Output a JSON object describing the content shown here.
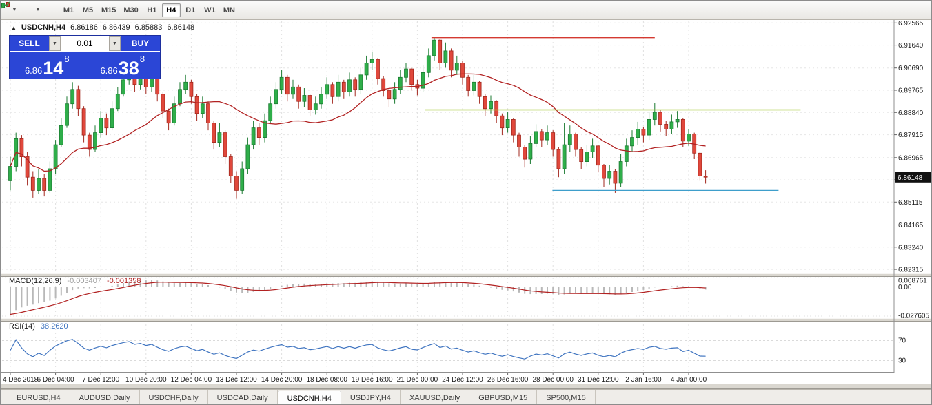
{
  "toolbar": {
    "timeframes": [
      "M1",
      "M5",
      "M15",
      "M30",
      "H1",
      "H4",
      "D1",
      "W1",
      "MN"
    ],
    "active_timeframe": "H4"
  },
  "chart": {
    "symbol_period": "USDCNH,H4",
    "ohlc": [
      "6.86186",
      "6.86439",
      "6.85883",
      "6.86148"
    ],
    "current_price_label": "6.86148",
    "trade_panel": {
      "sell_label": "SELL",
      "buy_label": "BUY",
      "lot_value": "0.01",
      "bid": {
        "prefix": "6.86",
        "pips": "14",
        "point": "8"
      },
      "ask": {
        "prefix": "6.86",
        "pips": "38",
        "point": "8"
      }
    }
  },
  "indicators": {
    "macd": {
      "label": "MACD(12,26,9)",
      "value": "-0.003407",
      "signal": "-0.001358",
      "scale": [
        "0.008761",
        "0.00",
        "-0.027605"
      ]
    },
    "rsi": {
      "label": "RSI(14)",
      "value": "38.2620",
      "scale": [
        "70",
        "30"
      ]
    }
  },
  "tabs": {
    "items": [
      "EURUSD,H4",
      "AUDUSD,Daily",
      "USDCHF,Daily",
      "USDCAD,Daily",
      "USDCNH,H4",
      "USDJPY,H4",
      "XAUUSD,Daily",
      "GBPUSD,M15",
      "SP500,M15"
    ],
    "active": "USDCNH,H4"
  },
  "colors": {
    "bull": "#2fae4a",
    "bull_border": "#1b7a31",
    "bear": "#e0483c",
    "bear_border": "#a2271d",
    "ma": "#b22222",
    "macd_hist": "#b8b8b8",
    "macd_signal": "#b22222",
    "rsi": "#3f74c0",
    "hline_red": "#d43a31",
    "hline_green": "#a6c832",
    "hline_blue": "#3e9ecb",
    "accent_blue": "#2b46d6"
  },
  "chart_data": {
    "type": "candlestick",
    "title": "USDCNH,H4",
    "symbol": "USDCNH",
    "timeframe": "H4",
    "ylim": [
      6.8226,
      6.9263
    ],
    "bars_per_label": 8,
    "price_axis_labels": [
      "6.92565",
      "6.91640",
      "6.90690",
      "6.89765",
      "6.88840",
      "6.87915",
      "6.86965",
      "6.86040",
      "6.85115",
      "6.84165",
      "6.83240",
      "6.82315"
    ],
    "time_axis_labels": [
      "4 Dec 2018",
      "6 Dec 04:00",
      "7 Dec 12:00",
      "10 Dec 20:00",
      "12 Dec 04:00",
      "13 Dec 12:00",
      "14 Dec 20:00",
      "18 Dec 08:00",
      "19 Dec 16:00",
      "21 Dec 00:00",
      "24 Dec 12:00",
      "26 Dec 16:00",
      "28 Dec 00:00",
      "31 Dec 12:00",
      "2 Jan 16:00",
      "4 Jan 00:00"
    ],
    "current_price": 6.86148,
    "candles": [
      [
        6.86,
        6.87,
        6.856,
        6.866
      ],
      [
        6.866,
        6.88,
        6.864,
        6.8775
      ],
      [
        6.8775,
        6.879,
        6.866,
        6.87
      ],
      [
        6.87,
        6.872,
        6.858,
        6.8615
      ],
      [
        6.8615,
        6.864,
        6.853,
        6.856
      ],
      [
        6.856,
        6.865,
        6.8545,
        6.861
      ],
      [
        6.861,
        6.863,
        6.8535,
        6.856
      ],
      [
        6.856,
        6.868,
        6.855,
        6.865
      ],
      [
        6.865,
        6.877,
        6.863,
        6.875
      ],
      [
        6.875,
        6.886,
        6.874,
        6.883
      ],
      [
        6.883,
        6.895,
        6.882,
        6.892
      ],
      [
        6.892,
        6.901,
        6.89,
        6.898
      ],
      [
        6.898,
        6.8995,
        6.887,
        6.89
      ],
      [
        6.89,
        6.891,
        6.876,
        6.879
      ],
      [
        6.879,
        6.88,
        6.87,
        6.873
      ],
      [
        6.873,
        6.883,
        6.872,
        6.88
      ],
      [
        6.88,
        6.889,
        6.878,
        6.886
      ],
      [
        6.886,
        6.888,
        6.879,
        6.882
      ],
      [
        6.882,
        6.893,
        6.881,
        6.89
      ],
      [
        6.89,
        6.899,
        6.889,
        6.896
      ],
      [
        6.896,
        6.905,
        6.895,
        6.902
      ],
      [
        6.902,
        6.9085,
        6.9,
        6.9065
      ],
      [
        6.9065,
        6.907,
        6.897,
        6.9
      ],
      [
        6.9,
        6.907,
        6.898,
        6.904
      ],
      [
        6.904,
        6.905,
        6.896,
        6.899
      ],
      [
        6.899,
        6.906,
        6.897,
        6.903
      ],
      [
        6.903,
        6.904,
        6.893,
        6.896
      ],
      [
        6.896,
        6.897,
        6.886,
        6.889
      ],
      [
        6.889,
        6.89,
        6.881,
        6.884
      ],
      [
        6.884,
        6.895,
        6.883,
        6.892
      ],
      [
        6.892,
        6.901,
        6.891,
        6.898
      ],
      [
        6.898,
        6.904,
        6.896,
        6.901
      ],
      [
        6.901,
        6.902,
        6.892,
        6.895
      ],
      [
        6.895,
        6.896,
        6.885,
        6.888
      ],
      [
        6.888,
        6.895,
        6.886,
        6.892
      ],
      [
        6.892,
        6.893,
        6.881,
        6.884
      ],
      [
        6.884,
        6.885,
        6.873,
        6.876
      ],
      [
        6.876,
        6.884,
        6.874,
        6.88
      ],
      [
        6.88,
        6.881,
        6.867,
        6.87
      ],
      [
        6.87,
        6.871,
        6.859,
        6.862
      ],
      [
        6.862,
        6.864,
        6.8525,
        6.856
      ],
      [
        6.856,
        6.868,
        6.8545,
        6.865
      ],
      [
        6.865,
        6.878,
        6.863,
        6.875
      ],
      [
        6.875,
        6.885,
        6.873,
        6.882
      ],
      [
        6.882,
        6.884,
        6.875,
        6.878
      ],
      [
        6.878,
        6.888,
        6.876,
        6.885
      ],
      [
        6.885,
        6.895,
        6.884,
        6.892
      ],
      [
        6.892,
        6.901,
        6.89,
        6.898
      ],
      [
        6.898,
        6.906,
        6.896,
        6.903
      ],
      [
        6.903,
        6.904,
        6.893,
        6.896
      ],
      [
        6.896,
        6.902,
        6.894,
        6.899
      ],
      [
        6.899,
        6.9,
        6.89,
        6.893
      ],
      [
        6.893,
        6.8985,
        6.8905,
        6.8955
      ],
      [
        6.8955,
        6.896,
        6.887,
        6.8895
      ],
      [
        6.8895,
        6.895,
        6.8875,
        6.892
      ],
      [
        6.892,
        6.899,
        6.89,
        6.896
      ],
      [
        6.896,
        6.903,
        6.894,
        6.9
      ],
      [
        6.9,
        6.901,
        6.892,
        6.895
      ],
      [
        6.895,
        6.904,
        6.893,
        6.901
      ],
      [
        6.901,
        6.902,
        6.894,
        6.897
      ],
      [
        6.897,
        6.905,
        6.895,
        6.902
      ],
      [
        6.902,
        6.903,
        6.895,
        6.898
      ],
      [
        6.898,
        6.907,
        6.896,
        6.904
      ],
      [
        6.904,
        6.912,
        6.902,
        6.909
      ],
      [
        6.909,
        6.9135,
        6.906,
        6.9105
      ],
      [
        6.9105,
        6.911,
        6.9,
        6.9025
      ],
      [
        6.9025,
        6.9035,
        6.895,
        6.8975
      ],
      [
        6.8975,
        6.8985,
        6.8905,
        6.894
      ],
      [
        6.894,
        6.901,
        6.892,
        6.898
      ],
      [
        6.898,
        6.906,
        6.896,
        6.903
      ],
      [
        6.903,
        6.909,
        6.901,
        6.9065
      ],
      [
        6.9065,
        6.907,
        6.8975,
        6.9
      ],
      [
        6.9,
        6.902,
        6.8955,
        6.8985
      ],
      [
        6.8985,
        6.908,
        6.897,
        6.905
      ],
      [
        6.905,
        6.915,
        6.903,
        6.912
      ],
      [
        6.912,
        6.9195,
        6.91,
        6.9185
      ],
      [
        6.9185,
        6.919,
        6.906,
        6.909
      ],
      [
        6.909,
        6.9175,
        6.907,
        6.914
      ],
      [
        6.914,
        6.915,
        6.903,
        6.906
      ],
      [
        6.906,
        6.912,
        6.904,
        6.909
      ],
      [
        6.909,
        6.91,
        6.9,
        6.903
      ],
      [
        6.903,
        6.904,
        6.895,
        6.8975
      ],
      [
        6.8975,
        6.904,
        6.8955,
        6.901
      ],
      [
        6.901,
        6.9015,
        6.892,
        6.895
      ],
      [
        6.895,
        6.896,
        6.887,
        6.89
      ],
      [
        6.89,
        6.8955,
        6.888,
        6.893
      ],
      [
        6.893,
        6.8935,
        6.884,
        6.887
      ],
      [
        6.887,
        6.888,
        6.879,
        6.882
      ],
      [
        6.882,
        6.8885,
        6.88,
        6.8855
      ],
      [
        6.8855,
        6.886,
        6.876,
        6.879
      ],
      [
        6.879,
        6.88,
        6.87,
        6.874
      ],
      [
        6.874,
        6.875,
        6.8655,
        6.869
      ],
      [
        6.869,
        6.8785,
        6.867,
        6.8755
      ],
      [
        6.8755,
        6.8835,
        6.874,
        6.8805
      ],
      [
        6.8805,
        6.8815,
        6.874,
        6.877
      ],
      [
        6.877,
        6.883,
        6.875,
        6.88
      ],
      [
        6.88,
        6.881,
        6.87,
        6.873
      ],
      [
        6.873,
        6.874,
        6.8615,
        6.865
      ],
      [
        6.865,
        6.884,
        6.863,
        6.875
      ],
      [
        6.875,
        6.883,
        6.872,
        6.8795
      ],
      [
        6.8795,
        6.88,
        6.87,
        6.873
      ],
      [
        6.873,
        6.874,
        6.865,
        6.868
      ],
      [
        6.868,
        6.875,
        6.866,
        6.872
      ],
      [
        6.872,
        6.8775,
        6.8695,
        6.8745
      ],
      [
        6.8745,
        6.875,
        6.8635,
        6.8665
      ],
      [
        6.8665,
        6.867,
        6.8575,
        6.861
      ],
      [
        6.861,
        6.8665,
        6.8585,
        6.864
      ],
      [
        6.864,
        6.865,
        6.855,
        6.859
      ],
      [
        6.859,
        6.871,
        6.8575,
        6.868
      ],
      [
        6.868,
        6.8775,
        6.866,
        6.8745
      ],
      [
        6.8745,
        6.881,
        6.872,
        6.878
      ],
      [
        6.878,
        6.8845,
        6.875,
        6.8815
      ],
      [
        6.8815,
        6.8825,
        6.876,
        6.879
      ],
      [
        6.879,
        6.8885,
        6.877,
        6.8855
      ],
      [
        6.8855,
        6.8925,
        6.883,
        6.8885
      ],
      [
        6.8885,
        6.8895,
        6.8805,
        6.8835
      ],
      [
        6.8835,
        6.885,
        6.8785,
        6.8815
      ],
      [
        6.8815,
        6.8875,
        6.8795,
        6.8845
      ],
      [
        6.8845,
        6.889,
        6.882,
        6.8855
      ],
      [
        6.8855,
        6.886,
        6.874,
        6.8765
      ],
      [
        6.8765,
        6.8815,
        6.8745,
        6.8795
      ],
      [
        6.8795,
        6.88,
        6.869,
        6.8715
      ],
      [
        6.8715,
        6.872,
        6.86,
        6.862
      ],
      [
        6.86186,
        6.86439,
        6.85883,
        6.86148
      ]
    ],
    "ma": {
      "period": 22
    },
    "hlines": [
      {
        "name": "resistance-hline-red",
        "price": 6.9195,
        "from_bar": 74.5,
        "to_bar": 114,
        "color_key": "hline_red"
      },
      {
        "name": "resistance-hline-green",
        "price": 6.8895,
        "from_bar": 73.3,
        "to_bar": 139.8,
        "color_key": "hline_green"
      },
      {
        "name": "support-hline-blue",
        "price": 6.856,
        "from_bar": 95.9,
        "to_bar": 135.9,
        "color_key": "hline_blue"
      }
    ],
    "macd": {
      "periods": {
        "fast": 12,
        "slow": 26,
        "signal": 9
      },
      "ylim": [
        -0.0276,
        0.0088
      ],
      "seed": {
        "ema12": 6.852,
        "ema26": 6.881,
        "signal": -0.026
      }
    },
    "rsi": {
      "period": 14,
      "ylim": [
        8,
        102
      ],
      "levels": [
        70,
        30
      ]
    }
  }
}
